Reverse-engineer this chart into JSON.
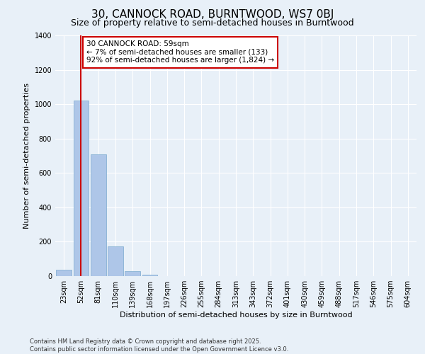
{
  "title_line1": "30, CANNOCK ROAD, BURNTWOOD, WS7 0BJ",
  "title_line2": "Size of property relative to semi-detached houses in Burntwood",
  "xlabel": "Distribution of semi-detached houses by size in Burntwood",
  "ylabel": "Number of semi-detached properties",
  "categories": [
    "23sqm",
    "52sqm",
    "81sqm",
    "110sqm",
    "139sqm",
    "168sqm",
    "197sqm",
    "226sqm",
    "255sqm",
    "284sqm",
    "313sqm",
    "343sqm",
    "372sqm",
    "401sqm",
    "430sqm",
    "459sqm",
    "488sqm",
    "517sqm",
    "546sqm",
    "575sqm",
    "604sqm"
  ],
  "values": [
    37,
    1020,
    710,
    175,
    27,
    9,
    0,
    0,
    0,
    0,
    0,
    0,
    0,
    0,
    0,
    0,
    0,
    0,
    0,
    0,
    0
  ],
  "bar_color": "#aec6e8",
  "bar_edge_color": "#7aaace",
  "vline_x": 1,
  "vline_color": "#cc0000",
  "annotation_text": "30 CANNOCK ROAD: 59sqm\n← 7% of semi-detached houses are smaller (133)\n92% of semi-detached houses are larger (1,824) →",
  "annotation_box_color": "#ffffff",
  "annotation_box_edge": "#cc0000",
  "ylim": [
    0,
    1400
  ],
  "yticks": [
    0,
    200,
    400,
    600,
    800,
    1000,
    1200,
    1400
  ],
  "bg_color": "#e8f0f8",
  "plot_bg_color": "#e8f0f8",
  "grid_color": "#ffffff",
  "footer": "Contains HM Land Registry data © Crown copyright and database right 2025.\nContains public sector information licensed under the Open Government Licence v3.0.",
  "title_fontsize": 11,
  "subtitle_fontsize": 9,
  "label_fontsize": 8,
  "tick_fontsize": 7,
  "footer_fontsize": 6,
  "annot_fontsize": 7.5
}
